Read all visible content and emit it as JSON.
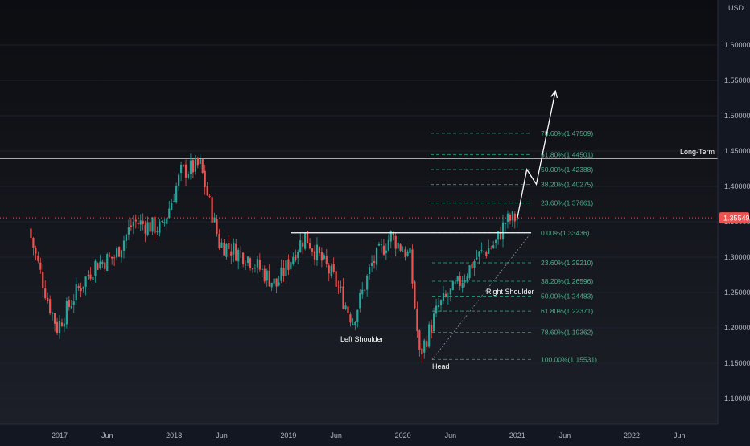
{
  "chart_data": {
    "type": "candlestick",
    "currency": "USD",
    "x_labels": [
      "2017",
      "Jun",
      "2018",
      "Jun",
      "2019",
      "Jun",
      "2020",
      "Jun",
      "2021",
      "Jun",
      "2022",
      "Jun"
    ],
    "y_ticks": [
      "1.60000",
      "1.55000",
      "1.50000",
      "1.45000",
      "1.40000",
      "1.35000",
      "1.30000",
      "1.25000",
      "1.20000",
      "1.15000",
      "1.10000"
    ],
    "ylim": [
      1.065,
      1.675
    ],
    "current_price": "1.35549",
    "resistance_label": "Long-Term",
    "resistance_price_partial": "1.4",
    "neckline_price": 1.33436,
    "annotations": {
      "left_shoulder": "Left Shoulder",
      "head": "Head",
      "right_shoulder": "Right Shoulder"
    },
    "fib_retracement_lower": [
      {
        "label": "0.00%(1.33436)",
        "value": 1.33436
      },
      {
        "label": "23.60%(1.29210)",
        "value": 1.2921
      },
      {
        "label": "38.20%(1.26596)",
        "value": 1.26596
      },
      {
        "label": "50.00%(1.24483)",
        "value": 1.24483
      },
      {
        "label": "61.80%(1.22371)",
        "value": 1.22371
      },
      {
        "label": "78.60%(1.19362)",
        "value": 1.19362
      },
      {
        "label": "100.00%(1.15531)",
        "value": 1.15531
      }
    ],
    "fib_extension_upper": [
      {
        "label": "23.60%(1.37661)",
        "value": 1.37661
      },
      {
        "label": "38.20%(1.40275)",
        "value": 1.40275
      },
      {
        "label": "50.00%(1.42388)",
        "value": 1.42388
      },
      {
        "label": "61.80%(1.44501)",
        "value": 1.44501
      },
      {
        "label": "78.60%(1.47509)",
        "value": 1.47509
      }
    ],
    "price_path_keypoints": [
      {
        "date": "2016-10",
        "price": 1.34
      },
      {
        "date": "2016-12",
        "price": 1.24
      },
      {
        "date": "2017-01",
        "price": 1.2
      },
      {
        "date": "2017-03",
        "price": 1.25
      },
      {
        "date": "2017-05",
        "price": 1.29
      },
      {
        "date": "2017-07",
        "price": 1.3
      },
      {
        "date": "2017-09",
        "price": 1.35
      },
      {
        "date": "2017-12",
        "price": 1.34
      },
      {
        "date": "2018-02",
        "price": 1.42
      },
      {
        "date": "2018-04",
        "price": 1.43
      },
      {
        "date": "2018-06",
        "price": 1.32
      },
      {
        "date": "2018-09",
        "price": 1.3
      },
      {
        "date": "2018-12",
        "price": 1.26
      },
      {
        "date": "2019-02",
        "price": 1.31
      },
      {
        "date": "2019-03",
        "price": 1.33
      },
      {
        "date": "2019-06",
        "price": 1.27
      },
      {
        "date": "2019-08",
        "price": 1.21
      },
      {
        "date": "2019-10",
        "price": 1.29
      },
      {
        "date": "2019-12",
        "price": 1.33
      },
      {
        "date": "2020-02",
        "price": 1.3
      },
      {
        "date": "2020-03",
        "price": 1.16
      },
      {
        "date": "2020-05",
        "price": 1.23
      },
      {
        "date": "2020-07",
        "price": 1.26
      },
      {
        "date": "2020-09",
        "price": 1.3
      },
      {
        "date": "2020-11",
        "price": 1.32
      },
      {
        "date": "2020-12",
        "price": 1.35
      },
      {
        "date": "2021-01",
        "price": 1.355
      }
    ],
    "projection_path": [
      {
        "date": "2021-01",
        "price": 1.355
      },
      {
        "date": "2021-02",
        "price": 1.424
      },
      {
        "date": "2021-03",
        "price": 1.403
      },
      {
        "date": "2021-05",
        "price": 1.535
      }
    ],
    "colors": {
      "up": "#26a69a",
      "down": "#ef5350",
      "fib": "#1b8f6e",
      "fib_text": "#4caf8a",
      "background": "#131722",
      "price_line": "#ef5350"
    }
  }
}
